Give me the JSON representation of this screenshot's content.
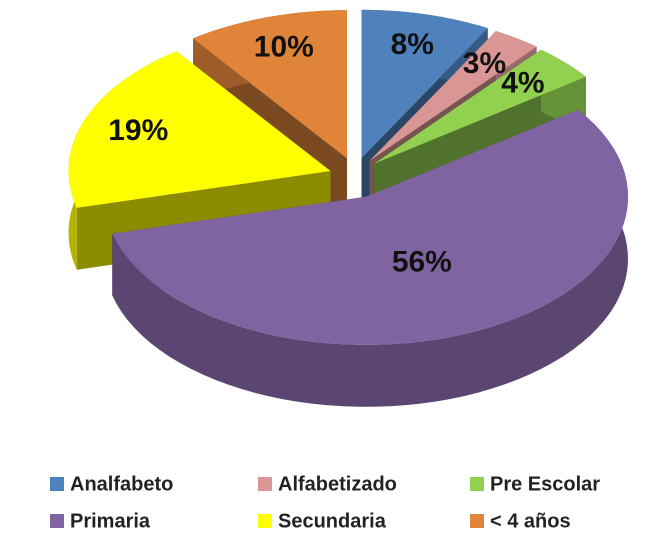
{
  "chart_data": {
    "type": "pie3d",
    "categories": [
      "Analfabeto",
      "Alfabetizado",
      "Pre Escolar",
      "Primaria",
      "Secundaria",
      "< 4 años"
    ],
    "values": [
      8,
      3,
      4,
      56,
      19,
      10
    ],
    "value_labels": [
      "8%",
      "3%",
      "4%",
      "56%",
      "19%",
      "10%"
    ],
    "colors": [
      "#4f81bd",
      "#d99694",
      "#92d050",
      "#8064a2",
      "#ffff00",
      "#e0843a"
    ],
    "legend": "bottom"
  }
}
